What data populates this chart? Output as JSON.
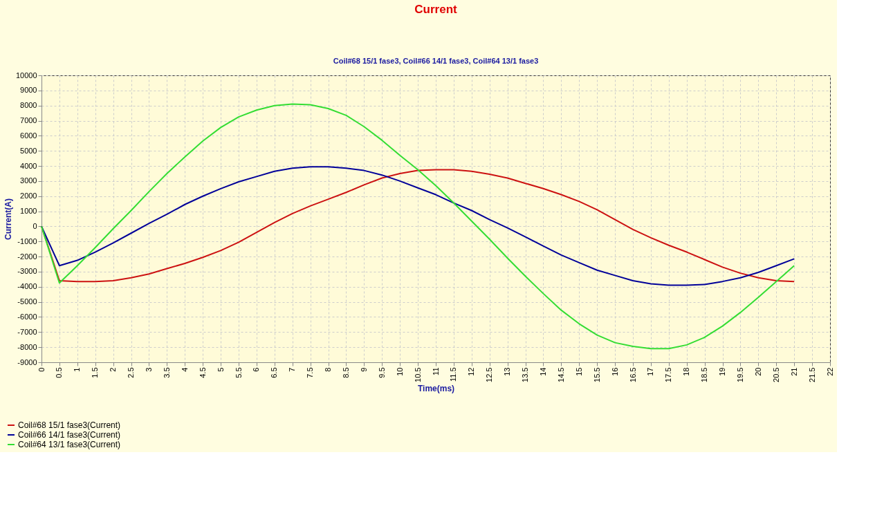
{
  "chart_data": {
    "type": "line",
    "title": "Current",
    "subtitle": "Coil#68 15/1 fase3, Coil#66 14/1 fase3, Coil#64 13/1 fase3",
    "xlabel": "Time(ms)",
    "ylabel": "Current(A)",
    "x": [
      0,
      0.5,
      1,
      1.5,
      2,
      2.5,
      3,
      3.5,
      4,
      4.5,
      5,
      5.5,
      6,
      6.5,
      7,
      7.5,
      8,
      8.5,
      9,
      9.5,
      10,
      10.5,
      11,
      11.5,
      12,
      12.5,
      13,
      13.5,
      14,
      14.5,
      15,
      15.5,
      16,
      16.5,
      17,
      17.5,
      18,
      18.5,
      19,
      19.5,
      20,
      20.5,
      21
    ],
    "series": [
      {
        "name": "Coil#68 15/1 fase3(Current)",
        "color": "#cc1111",
        "values": [
          0,
          -3600,
          -3650,
          -3650,
          -3600,
          -3400,
          -3150,
          -2800,
          -2450,
          -2050,
          -1600,
          -1050,
          -400,
          250,
          850,
          1350,
          1800,
          2250,
          2750,
          3200,
          3500,
          3700,
          3750,
          3750,
          3650,
          3450,
          3200,
          2850,
          2500,
          2100,
          1650,
          1100,
          450,
          -200,
          -750,
          -1250,
          -1700,
          -2200,
          -2700,
          -3100,
          -3400,
          -3600,
          -3650
        ]
      },
      {
        "name": "Coil#66 14/1 fase3(Current)",
        "color": "#000099",
        "values": [
          0,
          -2600,
          -2250,
          -1700,
          -1100,
          -450,
          200,
          800,
          1450,
          2000,
          2500,
          2950,
          3300,
          3650,
          3850,
          3950,
          3950,
          3850,
          3700,
          3400,
          3000,
          2550,
          2100,
          1550,
          1050,
          450,
          -100,
          -700,
          -1300,
          -1900,
          -2400,
          -2900,
          -3250,
          -3600,
          -3800,
          -3900,
          -3900,
          -3850,
          -3650,
          -3400,
          -3050,
          -2600,
          -2150
        ]
      },
      {
        "name": "Coil#64 13/1 fase3(Current)",
        "color": "#33dd33",
        "values": [
          0,
          -3750,
          -2600,
          -1400,
          -150,
          1050,
          2300,
          3500,
          4600,
          5650,
          6550,
          7250,
          7700,
          8000,
          8100,
          8050,
          7800,
          7350,
          6600,
          5700,
          4700,
          3750,
          2700,
          1550,
          350,
          -850,
          -2100,
          -3300,
          -4450,
          -5550,
          -6450,
          -7200,
          -7700,
          -7950,
          -8100,
          -8100,
          -7850,
          -7350,
          -6600,
          -5700,
          -4700,
          -3650,
          -2600
        ]
      }
    ],
    "xlim": [
      0,
      22
    ],
    "xticks": [
      0,
      0.5,
      1,
      1.5,
      2,
      2.5,
      3,
      3.5,
      4,
      4.5,
      5,
      5.5,
      6,
      6.5,
      7,
      7.5,
      8,
      8.5,
      9,
      9.5,
      10,
      10.5,
      11,
      11.5,
      12,
      12.5,
      13,
      13.5,
      14,
      14.5,
      15,
      15.5,
      16,
      16.5,
      17,
      17.5,
      18,
      18.5,
      19,
      19.5,
      20,
      20.5,
      21,
      21.5,
      22
    ],
    "ylim": [
      -9000,
      10000
    ],
    "yticks": [
      -9000,
      -8000,
      -7000,
      -6000,
      -5000,
      -4000,
      -3000,
      -2000,
      -1000,
      0,
      1000,
      2000,
      3000,
      4000,
      5000,
      6000,
      7000,
      8000,
      9000,
      10000
    ],
    "grid": true,
    "legend": "bottom left",
    "line_style": "solid",
    "marker": "none"
  }
}
